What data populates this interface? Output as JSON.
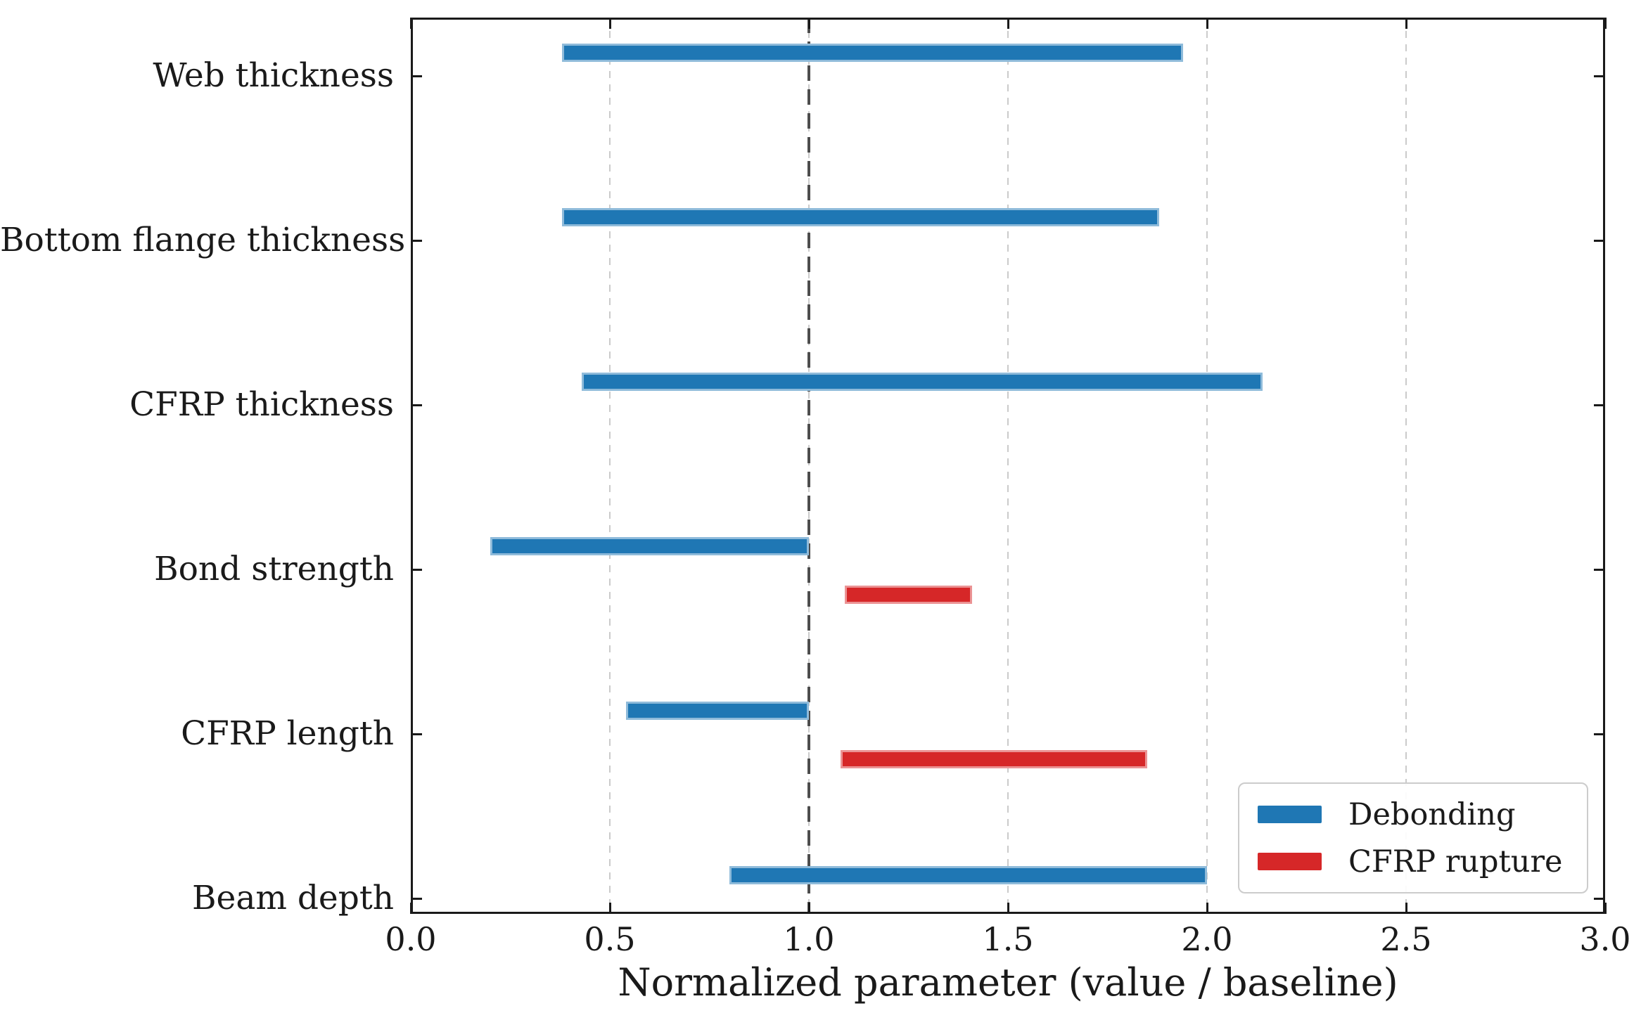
{
  "chart_data": {
    "type": "bar",
    "orientation": "horizontal",
    "title": "",
    "xlabel": "Normalized parameter (value / baseline)",
    "ylabel": "",
    "categories": [
      "Web thickness",
      "Bottom flange thickness",
      "CFRP thickness",
      "Bond strength",
      "CFRP length",
      "Beam depth"
    ],
    "series": [
      {
        "name": "Debonding",
        "color": "#1f77b4",
        "ranges": [
          [
            0.38,
            1.94
          ],
          [
            0.38,
            1.88
          ],
          [
            0.43,
            2.14
          ],
          [
            0.2,
            1.0
          ],
          [
            0.54,
            1.0
          ],
          [
            0.8,
            2.0
          ]
        ]
      },
      {
        "name": "CFRP rupture",
        "color": "#d62728",
        "ranges": [
          null,
          null,
          null,
          [
            1.09,
            1.41
          ],
          [
            1.08,
            1.85
          ],
          null
        ]
      }
    ],
    "baseline_x": 1.0,
    "xlim": [
      0.0,
      3.0
    ],
    "xticks": [
      0.0,
      0.5,
      1.0,
      1.5,
      2.0,
      2.5,
      3.0
    ],
    "xtick_labels": [
      "0.0",
      "0.5",
      "1.0",
      "1.5",
      "2.0",
      "2.5",
      "3.0"
    ],
    "grid": {
      "axis": "x",
      "style": "dashed",
      "color": "#cccccc"
    },
    "legend": {
      "position": "lower-right",
      "items": [
        "Debonding",
        "CFRP rupture"
      ]
    }
  }
}
